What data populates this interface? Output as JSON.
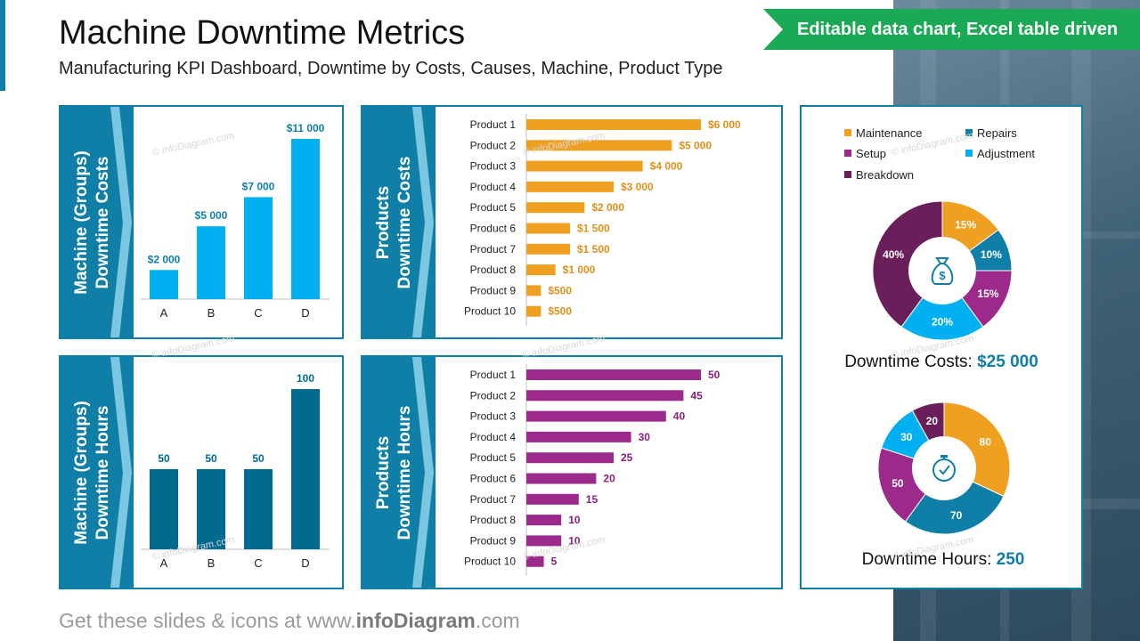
{
  "header": {
    "title": "Machine Downtime Metrics",
    "subtitle": "Manufacturing KPI Dashboard, Downtime by Costs, Causes, Machine, Product Type",
    "ribbon": "Editable data chart, Excel table driven"
  },
  "footer": {
    "prefix": "Get these slides & icons at www.",
    "brand": "infoDiagram",
    "suffix": ".com"
  },
  "watermark": "© infoDiagram.com",
  "colors": {
    "brand_blue": "#0f7fa8",
    "light_blue": "#00b0f0",
    "dark_teal": "#006b8f",
    "orange": "#f0a020",
    "purple": "#9b2a8a",
    "dark_purple": "#6b1f5a",
    "green": "#1aaa55"
  },
  "panels": {
    "machine_costs_label": [
      "Machine (Groups)",
      "Downtime Costs"
    ],
    "product_costs_label": [
      "Products",
      "Downtime Costs"
    ],
    "machine_hours_label": [
      "Machine (Groups)",
      "Downtime Hours"
    ],
    "product_hours_label": [
      "Products",
      "Downtime Hours"
    ]
  },
  "legend": {
    "items": [
      {
        "label": "Maintenance",
        "color": "#f0a020"
      },
      {
        "label": "Repairs",
        "color": "#0f7fa8"
      },
      {
        "label": "Setup",
        "color": "#9b2a8a"
      },
      {
        "label": "Adjustment",
        "color": "#00b0f0"
      },
      {
        "label": "Breakdown",
        "color": "#6b1f5a"
      }
    ]
  },
  "donut_costs": {
    "caption_label": "Downtime Costs:",
    "caption_value": "$25 000",
    "icon": "money-bag-icon"
  },
  "donut_hours": {
    "caption_label": "Downtime Hours:",
    "caption_value": "250",
    "icon": "stopwatch-icon"
  },
  "chart_data": [
    {
      "id": "machine_costs",
      "type": "bar",
      "title": "Machine (Groups) Downtime Costs",
      "categories": [
        "A",
        "B",
        "C",
        "D"
      ],
      "values": [
        2000,
        5000,
        7000,
        11000
      ],
      "labels": [
        "$2 000",
        "$5 000",
        "$7 000",
        "$11 000"
      ],
      "ylim": [
        0,
        11000
      ],
      "color": "#00b0f0"
    },
    {
      "id": "product_costs",
      "type": "bar",
      "orientation": "horizontal",
      "title": "Products Downtime Costs",
      "categories": [
        "Product 1",
        "Product 2",
        "Product 3",
        "Product 4",
        "Product 5",
        "Product 6",
        "Product 7",
        "Product 8",
        "Product 9",
        "Product 10"
      ],
      "values": [
        6000,
        5000,
        4000,
        3000,
        2000,
        1500,
        1500,
        1000,
        500,
        500
      ],
      "labels": [
        "$6 000",
        "$5 000",
        "$4 000",
        "$3 000",
        "$2 000",
        "$1 500",
        "$1 500",
        "$1 000",
        "$500",
        "$500"
      ],
      "xlim": [
        0,
        6000
      ],
      "color": "#f0a020"
    },
    {
      "id": "machine_hours",
      "type": "bar",
      "title": "Machine (Groups) Downtime Hours",
      "categories": [
        "A",
        "B",
        "C",
        "D"
      ],
      "values": [
        50,
        50,
        50,
        100
      ],
      "labels": [
        "50",
        "50",
        "50",
        "100"
      ],
      "ylim": [
        0,
        100
      ],
      "color": "#006b8f"
    },
    {
      "id": "product_hours",
      "type": "bar",
      "orientation": "horizontal",
      "title": "Products Downtime Hours",
      "categories": [
        "Product 1",
        "Product 2",
        "Product 3",
        "Product 4",
        "Product 5",
        "Product 6",
        "Product 7",
        "Product 8",
        "Product 9",
        "Product 10"
      ],
      "values": [
        50,
        45,
        40,
        30,
        25,
        20,
        15,
        10,
        10,
        5
      ],
      "labels": [
        "50",
        "45",
        "40",
        "30",
        "25",
        "20",
        "15",
        "10",
        "10",
        "5"
      ],
      "xlim": [
        0,
        50
      ],
      "color": "#9b2a8a"
    },
    {
      "id": "costs_by_cause",
      "type": "pie",
      "title": "Downtime Costs: $25 000",
      "categories": [
        "Maintenance",
        "Repairs",
        "Setup",
        "Adjustment",
        "Breakdown"
      ],
      "values": [
        15,
        10,
        15,
        20,
        40
      ],
      "labels": [
        "15%",
        "10%",
        "15%",
        "20%",
        "40%"
      ],
      "colors": [
        "#f0a020",
        "#0f7fa8",
        "#9b2a8a",
        "#00b0f0",
        "#6b1f5a"
      ]
    },
    {
      "id": "hours_by_cause",
      "type": "pie",
      "title": "Downtime Hours: 250",
      "categories": [
        "Maintenance",
        "Repairs",
        "Setup",
        "Adjustment",
        "Breakdown"
      ],
      "values": [
        80,
        70,
        50,
        30,
        20
      ],
      "labels": [
        "80",
        "70",
        "50",
        "30",
        "20"
      ],
      "colors": [
        "#f0a020",
        "#0f7fa8",
        "#9b2a8a",
        "#00b0f0",
        "#6b1f5a"
      ]
    }
  ]
}
